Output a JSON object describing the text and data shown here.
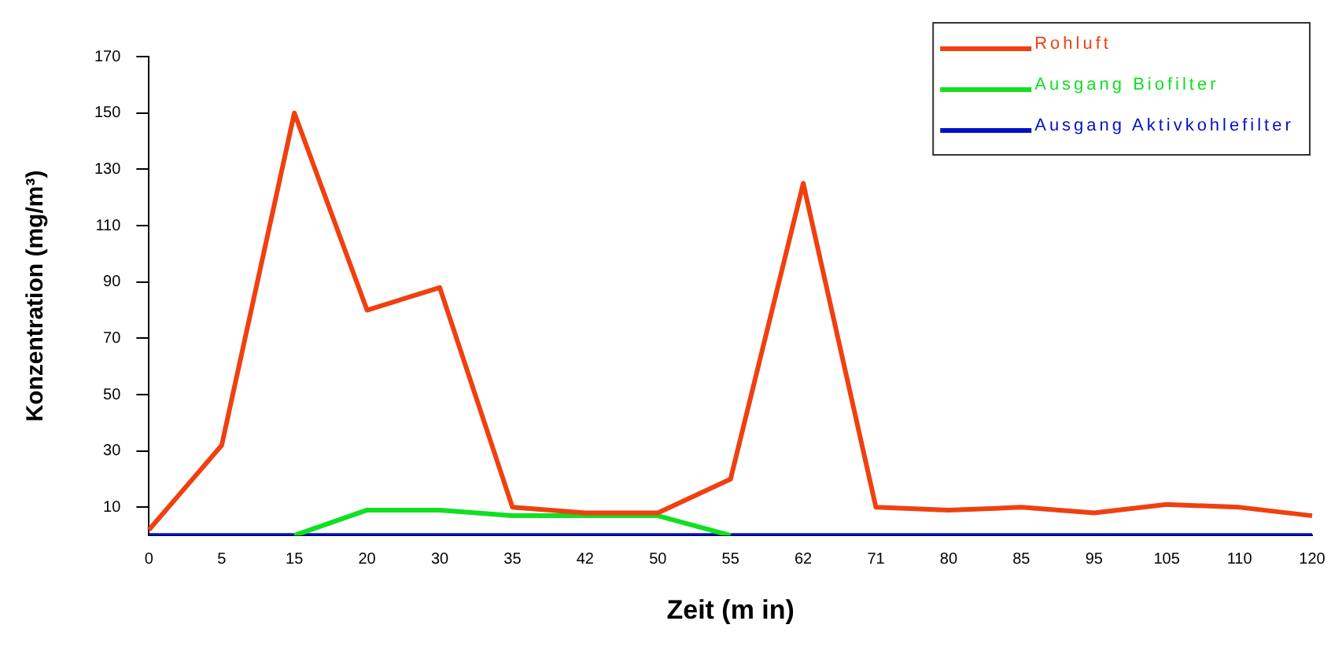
{
  "chart_data": {
    "type": "line",
    "xlabel": "Zeit (m in)",
    "ylabel": "Konzentration (mg/m³)",
    "categories": [
      "0",
      "5",
      "15",
      "20",
      "30",
      "35",
      "42",
      "50",
      "55",
      "62",
      "71",
      "80",
      "85",
      "95",
      "105",
      "110",
      "120"
    ],
    "series": [
      {
        "name": "Rohluft",
        "color": "#f04010",
        "values": [
          2,
          32,
          150,
          80,
          88,
          10,
          8,
          8,
          20,
          125,
          10,
          9,
          10,
          8,
          11,
          10,
          7
        ]
      },
      {
        "name": "Ausgang Biofilter",
        "color": "#10e020",
        "values": [
          null,
          null,
          0,
          9,
          9,
          7,
          7,
          7,
          0,
          null,
          null,
          null,
          null,
          null,
          null,
          null,
          null
        ]
      },
      {
        "name": "Ausgang Aktivkohlefilter",
        "color": "#0010c8",
        "values": [
          0,
          0,
          0,
          0,
          0,
          0,
          0,
          0,
          0,
          0,
          0,
          0,
          0,
          0,
          0,
          0,
          0
        ]
      }
    ],
    "ylim": [
      0,
      170
    ],
    "yticks": [
      10,
      30,
      50,
      70,
      90,
      110,
      130,
      150,
      170
    ],
    "grid": false,
    "legend": "top right",
    "marker": "none",
    "line_style": "solid"
  }
}
